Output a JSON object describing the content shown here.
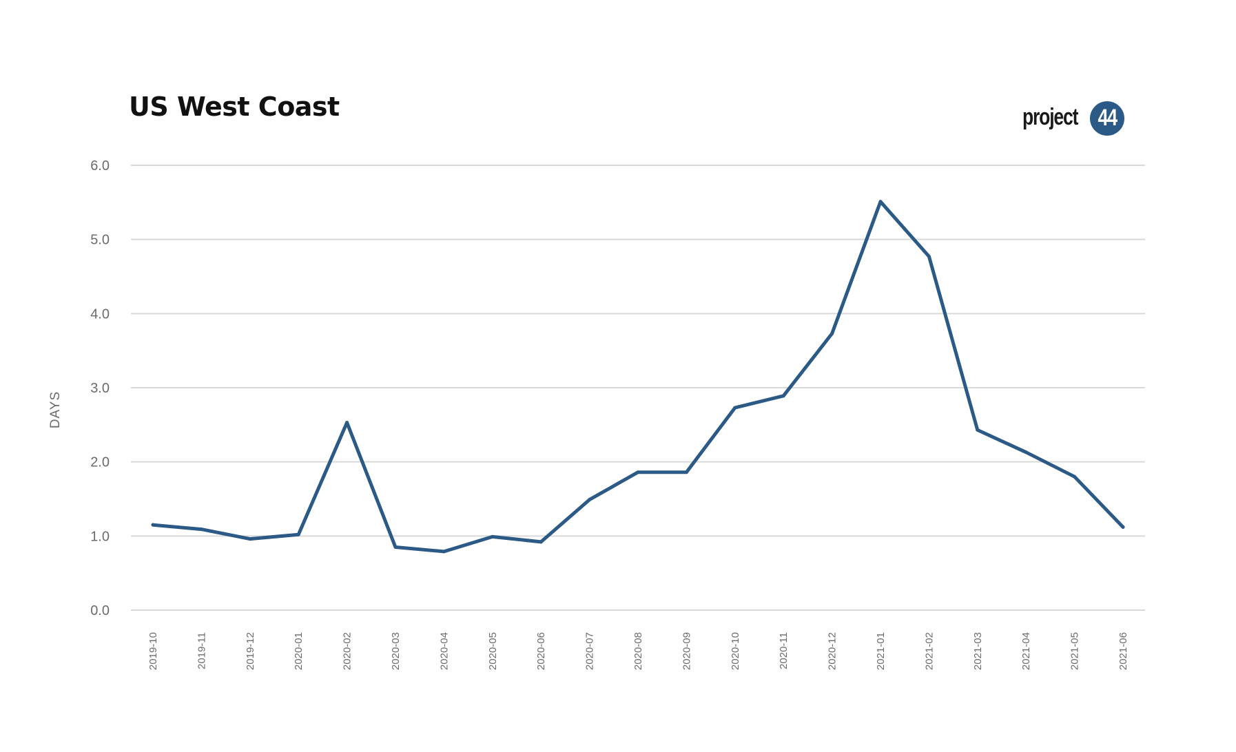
{
  "chart_data": {
    "type": "line",
    "title": "US West Coast",
    "xlabel": "",
    "ylabel": "DAYS",
    "ylim": [
      0,
      6
    ],
    "yticks": [
      "0.0",
      "1.0",
      "2.0",
      "3.0",
      "4.0",
      "5.0",
      "6.0"
    ],
    "grid": "horizontal",
    "categories": [
      "2019-10",
      "2019-11",
      "2019-12",
      "2020-01",
      "2020-02",
      "2020-03",
      "2020-04",
      "2020-05",
      "2020-06",
      "2020-07",
      "2020-08",
      "2020-09",
      "2020-10",
      "2020-11",
      "2020-12",
      "2021-01",
      "2021-02",
      "2021-03",
      "2021-04",
      "2021-05",
      "2021-06"
    ],
    "series": [
      {
        "color": "#2c5a86",
        "values": [
          1.15,
          1.09,
          0.96,
          1.02,
          2.53,
          0.85,
          0.79,
          0.99,
          0.92,
          1.49,
          1.86,
          1.86,
          2.73,
          2.89,
          3.73,
          5.51,
          4.77,
          2.43,
          2.13,
          1.8,
          1.12
        ]
      }
    ]
  },
  "logo": {
    "wordmark": "project",
    "badge": "44",
    "badge_color": "#2c5a86"
  }
}
